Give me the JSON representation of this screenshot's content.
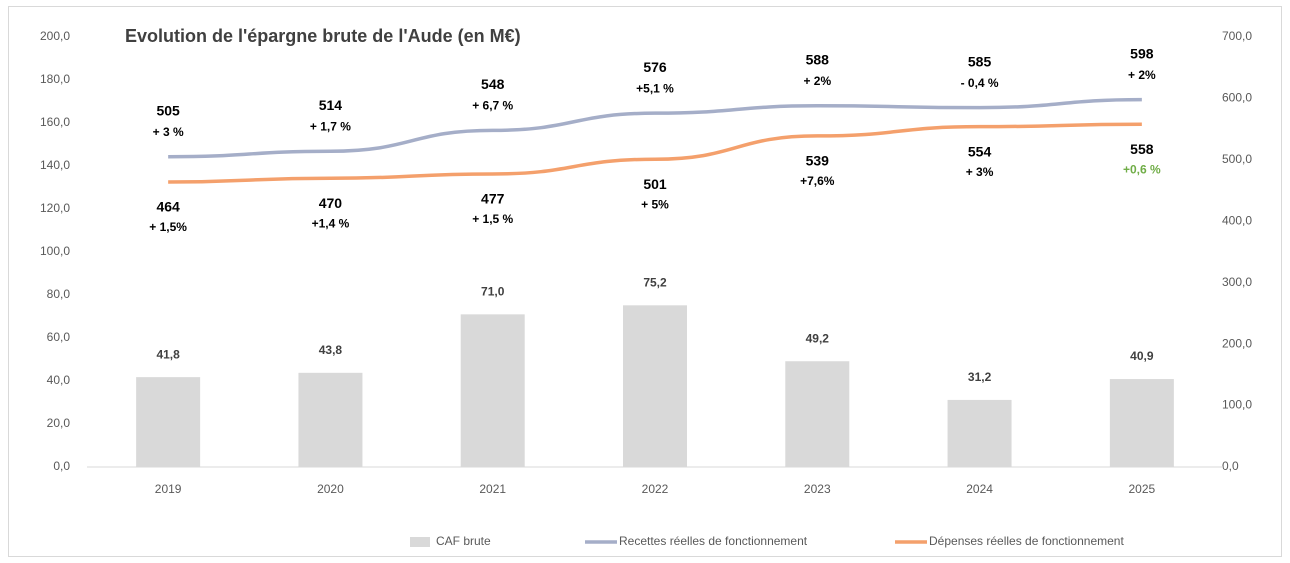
{
  "chart_data": {
    "type": "bar_line",
    "title": "Evolution de l'épargne brute de l'Aude (en M€)",
    "categories": [
      "2019",
      "2020",
      "2021",
      "2022",
      "2023",
      "2024",
      "2025"
    ],
    "ylim": [
      0,
      200
    ],
    "yticks": [
      {
        "value": 0,
        "label": "0,0"
      },
      {
        "value": 20,
        "label": "20,0"
      },
      {
        "value": 40,
        "label": "40,0"
      },
      {
        "value": 60,
        "label": "60,0"
      },
      {
        "value": 80,
        "label": "80,0"
      },
      {
        "value": 100,
        "label": "100,0"
      },
      {
        "value": 120,
        "label": "120,0"
      },
      {
        "value": 140,
        "label": "140,0"
      },
      {
        "value": 160,
        "label": "160,0"
      },
      {
        "value": 180,
        "label": "180,0"
      },
      {
        "value": 200,
        "label": "200,0"
      }
    ],
    "y2lim": [
      0,
      700
    ],
    "y2ticks": [
      {
        "value": 0,
        "label": "0,0"
      },
      {
        "value": 100,
        "label": "100,0"
      },
      {
        "value": 200,
        "label": "200,0"
      },
      {
        "value": 300,
        "label": "300,0"
      },
      {
        "value": 400,
        "label": "400,0"
      },
      {
        "value": 500,
        "label": "500,0"
      },
      {
        "value": 600,
        "label": "600,0"
      },
      {
        "value": 700,
        "label": "700,0"
      }
    ],
    "series": [
      {
        "name": "CAF brute",
        "kind": "bar",
        "color": "#d9d9d9",
        "values": [
          41.8,
          43.8,
          71.0,
          75.2,
          49.2,
          31.2,
          40.9
        ],
        "value_labels": [
          "41,8",
          "43,8",
          "71,0",
          "75,2",
          "49,2",
          "31,2",
          "40,9"
        ]
      },
      {
        "name": "Recettes réelles de fonctionnement",
        "kind": "line",
        "axis": "y2",
        "color": "#a5aec8",
        "values": [
          505,
          514,
          548,
          576,
          588,
          585,
          598
        ],
        "changes": [
          "+ 3 %",
          "+ 1,7 %",
          "+ 6,7 %",
          "+5,1 %",
          "+ 2%",
          "- 0,4 %",
          "+ 2%"
        ],
        "change_colors": [
          "#000",
          "#000",
          "#000",
          "#000",
          "#000",
          "#000",
          "#000"
        ]
      },
      {
        "name": "Dépenses réelles de fonctionnement",
        "kind": "line",
        "axis": "y2",
        "color": "#f4a06c",
        "values": [
          464,
          470,
          477,
          501,
          539,
          554,
          558
        ],
        "changes": [
          "+ 1,5%",
          "+1,4 %",
          "+ 1,5 %",
          "+ 5%",
          "+7,6%",
          "+ 3%",
          "+0,6 %"
        ],
        "change_colors": [
          "#000",
          "#000",
          "#000",
          "#000",
          "#000",
          "#000",
          "#70ad47"
        ]
      }
    ]
  }
}
